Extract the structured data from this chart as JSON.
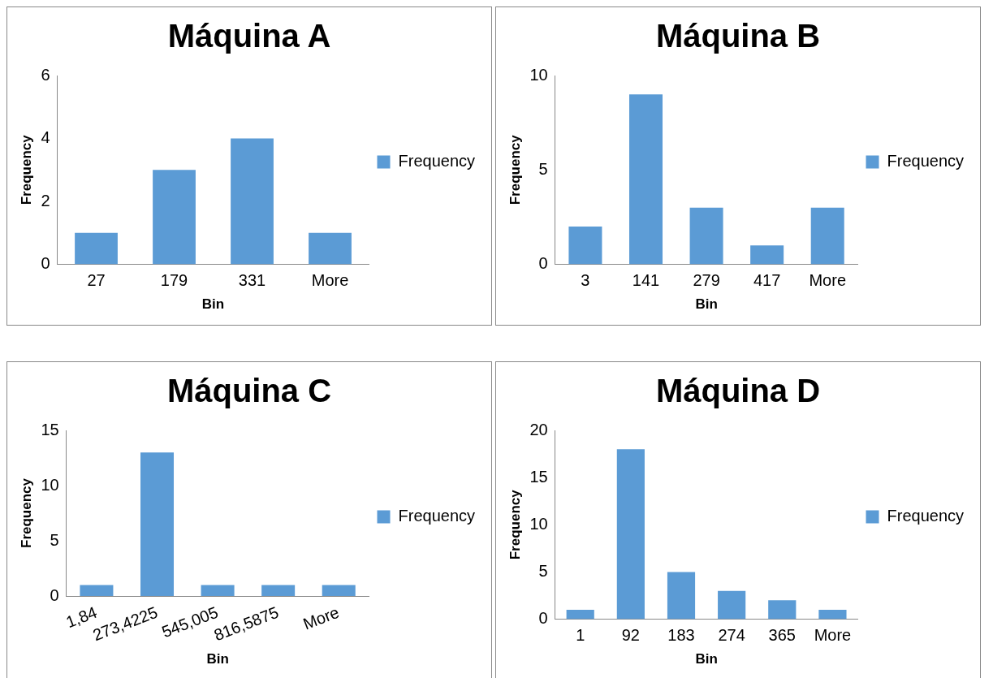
{
  "chart_data": [
    {
      "type": "bar",
      "title": "Máquina A",
      "xlabel": "Bin",
      "ylabel": "Frequency",
      "categories": [
        "27",
        "179",
        "331",
        "More"
      ],
      "series": [
        {
          "name": "Frequency",
          "color": "#5b9bd5",
          "values": [
            1,
            3,
            4,
            1
          ]
        }
      ],
      "ylim": [
        0,
        6
      ],
      "yticks": [
        0,
        2,
        4,
        6
      ],
      "legend": "right"
    },
    {
      "type": "bar",
      "title": "Máquina B",
      "xlabel": "Bin",
      "ylabel": "Frequency",
      "categories": [
        "3",
        "141",
        "279",
        "417",
        "More"
      ],
      "series": [
        {
          "name": "Frequency",
          "color": "#5b9bd5",
          "values": [
            2,
            9,
            3,
            1,
            3
          ]
        }
      ],
      "ylim": [
        0,
        10
      ],
      "yticks": [
        0,
        5,
        10
      ],
      "legend": "right"
    },
    {
      "type": "bar",
      "title": "Máquina C",
      "xlabel": "Bin",
      "ylabel": "Frequency",
      "categories": [
        "1,84",
        "273,4225",
        "545,005",
        "816,5875",
        "More"
      ],
      "series": [
        {
          "name": "Frequency",
          "color": "#5b9bd5",
          "values": [
            1,
            13,
            1,
            1,
            1
          ]
        }
      ],
      "ylim": [
        0,
        15
      ],
      "yticks": [
        0,
        5,
        10,
        15
      ],
      "legend": "right"
    },
    {
      "type": "bar",
      "title": "Máquina D",
      "xlabel": "Bin",
      "ylabel": "Frequency",
      "categories": [
        "1",
        "92",
        "183",
        "274",
        "365",
        "More"
      ],
      "series": [
        {
          "name": "Frequency",
          "color": "#5b9bd5",
          "values": [
            1,
            18,
            5,
            3,
            2,
            1
          ]
        }
      ],
      "ylim": [
        0,
        20
      ],
      "yticks": [
        0,
        5,
        10,
        15,
        20
      ],
      "legend": "right"
    }
  ]
}
